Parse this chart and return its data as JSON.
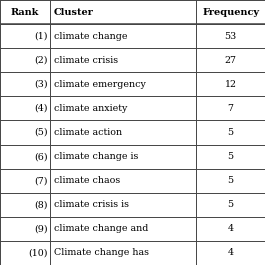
{
  "ranks": [
    "(1)",
    "(2)",
    "(3)",
    "(4)",
    "(5)",
    "(6)",
    "(7)",
    "(8)",
    "(9)",
    "(10)"
  ],
  "clusters": [
    "climate change",
    "climate crisis",
    "climate emergency",
    "climate anxiety",
    "climate action",
    "climate change is",
    "climate chaos",
    "climate crisis is",
    "climate change and",
    "Climate change has"
  ],
  "frequencies": [
    "53",
    "27",
    "12",
    "7",
    "5",
    "5",
    "5",
    "5",
    "4",
    "4"
  ],
  "col_headers": [
    "Rank",
    "Cluster",
    "Frequency"
  ],
  "header_fontsize": 7.0,
  "row_fontsize": 6.8,
  "background_color": "#ffffff",
  "border_color": "#444444",
  "col_divs": [
    0.0,
    0.19,
    0.74,
    1.0
  ]
}
